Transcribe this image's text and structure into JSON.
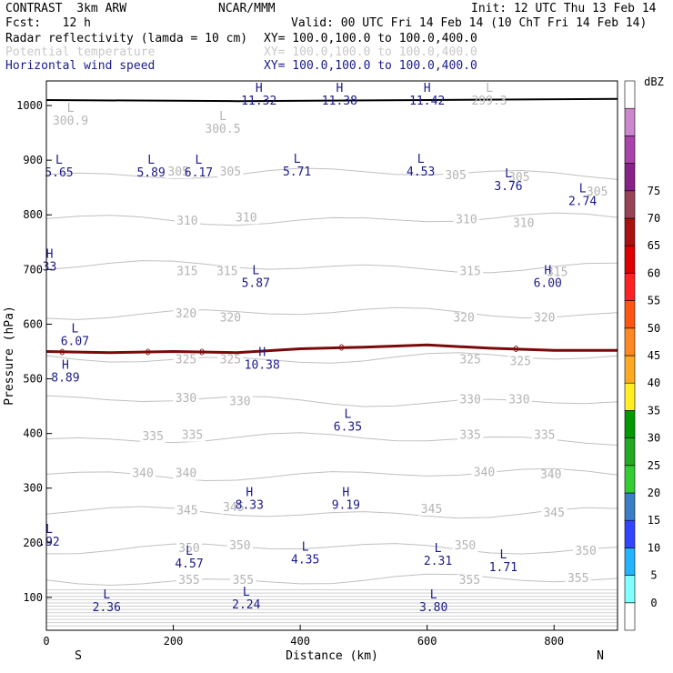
{
  "header": {
    "model": "CONTRAST  3km ARW",
    "org": "NCAR/MMM",
    "init": "Init: 12 UTC Thu 13 Feb 14",
    "fcst": "Fcst:   12 h",
    "valid": "Valid: 00 UTC Fri 14 Feb 14 (10 ChT Fri 14 Feb 14)",
    "fields": [
      {
        "name": "Radar reflectivity (lamda = 10 cm)",
        "xy": "XY= 100.0,100.0 to 100.0,400.0",
        "color": "#000000"
      },
      {
        "name": "Potential temperature",
        "xy": "XY= 100.0,100.0 to 100.0,400.0",
        "color": "#c8c8c8"
      },
      {
        "name": "Horizontal wind speed",
        "xy": "XY= 100.0,100.0 to 100.0,400.0",
        "color": "#1a1a8c"
      }
    ]
  },
  "chart_data": {
    "type": "cross-section",
    "xlabel": "Distance (km)",
    "ylabel": "Pressure (hPa)",
    "x_range": [
      0,
      900
    ],
    "y_range": [
      1045,
      40
    ],
    "x_ticks": [
      0,
      200,
      400,
      600,
      800
    ],
    "y_ticks": [
      100,
      200,
      300,
      400,
      500,
      600,
      700,
      800,
      900,
      1000
    ],
    "end_labels": {
      "left": "S",
      "right": "N"
    },
    "theta_contours": [
      {
        "value": 355,
        "p": 132
      },
      {
        "value": 350,
        "p": 190
      },
      {
        "value": 345,
        "p": 255
      },
      {
        "value": 340,
        "p": 325
      },
      {
        "value": 335,
        "p": 390
      },
      {
        "value": 330,
        "p": 460
      },
      {
        "value": 325,
        "p": 538
      },
      {
        "value": 320,
        "p": 620
      },
      {
        "value": 315,
        "p": 705
      },
      {
        "value": 310,
        "p": 792
      },
      {
        "value": 305,
        "p": 875
      }
    ],
    "theta_labels": [
      {
        "text": "355",
        "x": 225,
        "p": 125
      },
      {
        "text": "355",
        "x": 310,
        "p": 125
      },
      {
        "text": "355",
        "x": 667,
        "p": 125
      },
      {
        "text": "355",
        "x": 838,
        "p": 128
      },
      {
        "text": "350",
        "x": 225,
        "p": 183
      },
      {
        "text": "350",
        "x": 305,
        "p": 188
      },
      {
        "text": "350",
        "x": 660,
        "p": 188
      },
      {
        "text": "350",
        "x": 850,
        "p": 178
      },
      {
        "text": "345",
        "x": 222,
        "p": 252
      },
      {
        "text": "345",
        "x": 295,
        "p": 258
      },
      {
        "text": "345",
        "x": 607,
        "p": 255
      },
      {
        "text": "345",
        "x": 800,
        "p": 248
      },
      {
        "text": "340",
        "x": 152,
        "p": 320
      },
      {
        "text": "340",
        "x": 220,
        "p": 320
      },
      {
        "text": "340",
        "x": 690,
        "p": 322
      },
      {
        "text": "340",
        "x": 795,
        "p": 318
      },
      {
        "text": "335",
        "x": 168,
        "p": 388
      },
      {
        "text": "335",
        "x": 230,
        "p": 390
      },
      {
        "text": "335",
        "x": 668,
        "p": 390
      },
      {
        "text": "335",
        "x": 785,
        "p": 390
      },
      {
        "text": "330",
        "x": 220,
        "p": 458
      },
      {
        "text": "330",
        "x": 305,
        "p": 452
      },
      {
        "text": "330",
        "x": 668,
        "p": 455
      },
      {
        "text": "330",
        "x": 745,
        "p": 455
      },
      {
        "text": "325",
        "x": 220,
        "p": 528
      },
      {
        "text": "325",
        "x": 290,
        "p": 528
      },
      {
        "text": "325",
        "x": 668,
        "p": 528
      },
      {
        "text": "325",
        "x": 747,
        "p": 525
      },
      {
        "text": "320",
        "x": 220,
        "p": 612
      },
      {
        "text": "320",
        "x": 290,
        "p": 605
      },
      {
        "text": "320",
        "x": 658,
        "p": 605
      },
      {
        "text": "320",
        "x": 785,
        "p": 605
      },
      {
        "text": "315",
        "x": 222,
        "p": 690
      },
      {
        "text": "315",
        "x": 285,
        "p": 690
      },
      {
        "text": "315",
        "x": 668,
        "p": 690
      },
      {
        "text": "315",
        "x": 805,
        "p": 688
      },
      {
        "text": "310",
        "x": 222,
        "p": 782
      },
      {
        "text": "310",
        "x": 315,
        "p": 788
      },
      {
        "text": "310",
        "x": 662,
        "p": 785
      },
      {
        "text": "310",
        "x": 752,
        "p": 778
      },
      {
        "text": "305",
        "x": 208,
        "p": 872
      },
      {
        "text": "305",
        "x": 290,
        "p": 872
      },
      {
        "text": "305",
        "x": 645,
        "p": 865
      },
      {
        "text": "305",
        "x": 745,
        "p": 862
      },
      {
        "text": "305",
        "x": 868,
        "p": 835
      }
    ],
    "extrema": [
      {
        "kind": "L",
        "value": "2.36",
        "x": 95,
        "p": 75,
        "color": "navy"
      },
      {
        "kind": "L",
        "value": "2.24",
        "x": 315,
        "p": 80,
        "color": "navy"
      },
      {
        "kind": "L",
        "value": "3.80",
        "x": 610,
        "p": 75,
        "color": "navy"
      },
      {
        "kind": "L",
        "value": "4.57",
        "x": 225,
        "p": 155,
        "color": "navy"
      },
      {
        "kind": "L",
        "value": "4.35",
        "x": 408,
        "p": 162,
        "color": "navy"
      },
      {
        "kind": "L",
        "value": "2.31",
        "x": 617,
        "p": 160,
        "color": "navy"
      },
      {
        "kind": "L",
        "value": "1.71",
        "x": 720,
        "p": 148,
        "color": "navy"
      },
      {
        "kind": "L",
        "value": ".92",
        "x": -10,
        "p": 195,
        "color": "navy"
      },
      {
        "kind": "H",
        "value": "8.33",
        "x": 320,
        "p": 262,
        "color": "navy"
      },
      {
        "kind": "H",
        "value": "9.19",
        "x": 472,
        "p": 262,
        "color": "navy"
      },
      {
        "kind": "L",
        "value": "6.35",
        "x": 475,
        "p": 405,
        "color": "navy"
      },
      {
        "kind": "H",
        "value": "8.89",
        "x": 30,
        "p": 495,
        "color": "navy"
      },
      {
        "kind": "H",
        "value": "10.38",
        "x": 340,
        "p": 518,
        "color": "navy"
      },
      {
        "kind": "L",
        "value": "6.07",
        "x": 45,
        "p": 562,
        "color": "navy"
      },
      {
        "kind": "L",
        "value": "5.87",
        "x": 330,
        "p": 668,
        "color": "navy"
      },
      {
        "kind": "H",
        "value": "6.00",
        "x": 790,
        "p": 668,
        "color": "navy"
      },
      {
        "kind": "H",
        "value": "33",
        "x": 5,
        "p": 698,
        "color": "navy"
      },
      {
        "kind": "L",
        "value": "2.74",
        "x": 845,
        "p": 818,
        "color": "navy"
      },
      {
        "kind": "L",
        "value": "3.76",
        "x": 728,
        "p": 845,
        "color": "navy"
      },
      {
        "kind": "L",
        "value": "5.65",
        "x": 20,
        "p": 870,
        "color": "navy"
      },
      {
        "kind": "L",
        "value": "5.89",
        "x": 165,
        "p": 870,
        "color": "navy"
      },
      {
        "kind": "L",
        "value": "6.17",
        "x": 240,
        "p": 870,
        "color": "navy"
      },
      {
        "kind": "L",
        "value": "5.71",
        "x": 395,
        "p": 872,
        "color": "navy"
      },
      {
        "kind": "L",
        "value": "4.53",
        "x": 590,
        "p": 872,
        "color": "navy"
      },
      {
        "kind": "L",
        "value": "300.5",
        "x": 278,
        "p": 950,
        "color": "gray"
      },
      {
        "kind": "L",
        "value": "300.9",
        "x": 38,
        "p": 965,
        "color": "gray"
      },
      {
        "kind": "H",
        "value": "11.32",
        "x": 335,
        "p": 1002,
        "color": "navy"
      },
      {
        "kind": "H",
        "value": "11.38",
        "x": 462,
        "p": 1002,
        "color": "navy"
      },
      {
        "kind": "H",
        "value": "11.42",
        "x": 600,
        "p": 1002,
        "color": "navy"
      },
      {
        "kind": "L",
        "value": "299.3",
        "x": 698,
        "p": 1002,
        "color": "gray"
      }
    ],
    "reflectivity_band": [
      {
        "x": 0,
        "p": 550
      },
      {
        "x": 100,
        "p": 548
      },
      {
        "x": 200,
        "p": 550
      },
      {
        "x": 300,
        "p": 548
      },
      {
        "x": 400,
        "p": 555
      },
      {
        "x": 500,
        "p": 558
      },
      {
        "x": 600,
        "p": 562
      },
      {
        "x": 700,
        "p": 556
      },
      {
        "x": 800,
        "p": 552
      },
      {
        "x": 900,
        "p": 552
      }
    ],
    "band_markers": [
      {
        "text": "0",
        "x": 25,
        "p": 550
      },
      {
        "text": "0",
        "x": 160,
        "p": 550
      },
      {
        "text": "0",
        "x": 245,
        "p": 550
      },
      {
        "text": "0",
        "x": 465,
        "p": 558
      },
      {
        "text": "0",
        "x": 740,
        "p": 556
      }
    ],
    "surface_line": [
      {
        "x": 0,
        "p": 1010
      },
      {
        "x": 300,
        "p": 1008
      },
      {
        "x": 600,
        "p": 1010
      },
      {
        "x": 900,
        "p": 1012
      }
    ],
    "colorbar": {
      "unit": "dBZ",
      "levels": [
        0,
        5,
        10,
        15,
        20,
        25,
        30,
        35,
        40,
        45,
        50,
        55,
        60,
        65,
        70,
        75
      ],
      "colors": [
        "#ffffff",
        "#80ffff",
        "#22b4ff",
        "#3344ff",
        "#3a7ec8",
        "#33cc33",
        "#22aa22",
        "#009900",
        "#ffee22",
        "#ffaa22",
        "#ff8822",
        "#ff5511",
        "#ff2222",
        "#dd0000",
        "#aa1111",
        "#994455",
        "#882288",
        "#aa44aa",
        "#cc88cc",
        "#ffffff"
      ]
    }
  }
}
